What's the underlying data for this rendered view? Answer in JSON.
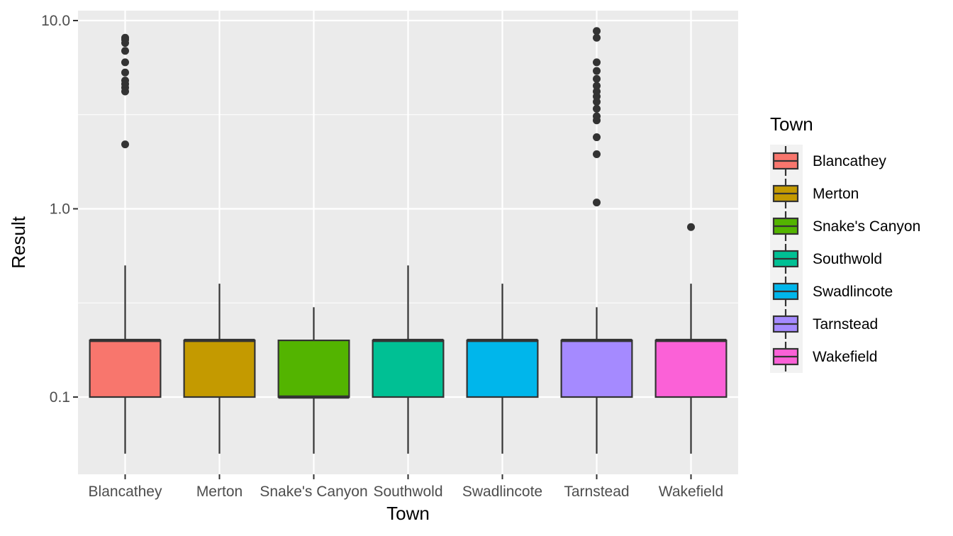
{
  "chart_data": {
    "type": "boxplot",
    "xlabel": "Town",
    "ylabel": "Result",
    "y_scale": "log10",
    "ylim": [
      0.04,
      12
    ],
    "y_ticks": [
      0.1,
      1.0,
      10.0
    ],
    "y_tick_labels": [
      "0.1",
      "1.0",
      "10.0"
    ],
    "grid": true,
    "legend": {
      "title": "Town",
      "position": "right"
    },
    "categories": [
      "Blancathey",
      "Merton",
      "Snake's Canyon",
      "Southwold",
      "Swadlincote",
      "Tarnstead",
      "Wakefield"
    ],
    "boxes": [
      {
        "category": "Blancathey",
        "lower_whisker": 0.05,
        "q1": 0.1,
        "median": 0.2,
        "q3": 0.2,
        "upper_whisker": 0.5,
        "outliers": [
          2.2,
          4.2,
          4.4,
          4.6,
          4.8,
          5.3,
          6.0,
          6.9,
          7.6,
          7.9,
          8.1
        ],
        "color": "#F8766D"
      },
      {
        "category": "Merton",
        "lower_whisker": 0.05,
        "q1": 0.1,
        "median": 0.2,
        "q3": 0.2,
        "upper_whisker": 0.4,
        "outliers": [],
        "color": "#C49A00"
      },
      {
        "category": "Snake's Canyon",
        "lower_whisker": 0.05,
        "q1": 0.1,
        "median": 0.1,
        "q3": 0.2,
        "upper_whisker": 0.3,
        "outliers": [],
        "color": "#53B400"
      },
      {
        "category": "Southwold",
        "lower_whisker": 0.05,
        "q1": 0.1,
        "median": 0.2,
        "q3": 0.2,
        "upper_whisker": 0.5,
        "outliers": [],
        "color": "#00C094"
      },
      {
        "category": "Swadlincote",
        "lower_whisker": 0.05,
        "q1": 0.1,
        "median": 0.2,
        "q3": 0.2,
        "upper_whisker": 0.4,
        "outliers": [],
        "color": "#00B6EB"
      },
      {
        "category": "Tarnstead",
        "lower_whisker": 0.05,
        "q1": 0.1,
        "median": 0.2,
        "q3": 0.2,
        "upper_whisker": 0.3,
        "outliers": [
          1.08,
          1.95,
          2.4,
          2.95,
          3.1,
          3.4,
          3.7,
          3.95,
          4.2,
          4.5,
          4.9,
          5.4,
          6.0,
          8.1,
          8.8
        ],
        "color": "#A58AFF"
      },
      {
        "category": "Wakefield",
        "lower_whisker": 0.05,
        "q1": 0.1,
        "median": 0.2,
        "q3": 0.2,
        "upper_whisker": 0.4,
        "outliers": [
          0.8
        ],
        "color": "#FB61D7"
      }
    ]
  }
}
